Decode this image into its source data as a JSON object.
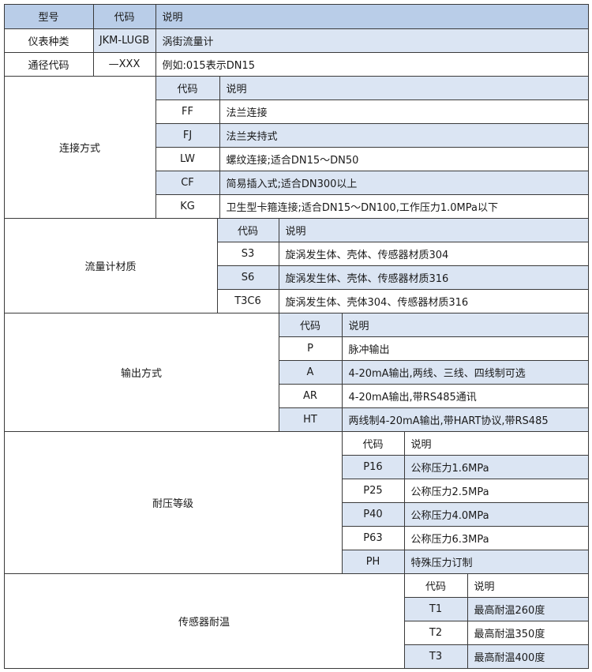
{
  "header": {
    "model": "型号",
    "code": "代码",
    "desc": "说明"
  },
  "top_rows": [
    {
      "label": "仪表种类",
      "code": "JKM-LUGB",
      "desc": "涡街流量计"
    },
    {
      "label": "通径代码",
      "code": "—XXX",
      "desc": "例如:015表示DN15"
    }
  ],
  "sections": [
    {
      "label": "连接方式",
      "code_header": "代码",
      "desc_header": "说明",
      "rows": [
        {
          "code": "FF",
          "desc": "法兰连接"
        },
        {
          "code": "FJ",
          "desc": "法兰夹持式"
        },
        {
          "code": "LW",
          "desc": "螺纹连接;适合DN15～DN50"
        },
        {
          "code": "CF",
          "desc": "简易插入式;适合DN300以上"
        },
        {
          "code": "KG",
          "desc": "卫生型卡箍连接;适合DN15～DN100,工作压力1.0MPa以下"
        }
      ]
    },
    {
      "label": "流量计材质",
      "code_header": "代码",
      "desc_header": "说明",
      "rows": [
        {
          "code": "S3",
          "desc": "旋涡发生体、壳体、传感器材质304"
        },
        {
          "code": "S6",
          "desc": "旋涡发生体、壳体、传感器材质316"
        },
        {
          "code": "T3C6",
          "desc": "旋涡发生体、壳体304、传感器材质316"
        }
      ]
    },
    {
      "label": "输出方式",
      "code_header": "代码",
      "desc_header": "说明",
      "rows": [
        {
          "code": "P",
          "desc": "脉冲输出"
        },
        {
          "code": "A",
          "desc": "4-20mA输出,两线、三线、四线制可选"
        },
        {
          "code": "AR",
          "desc": "4-20mA输出,带RS485通讯"
        },
        {
          "code": "HT",
          "desc": "两线制4-20mA输出,带HART协议,带RS485"
        }
      ]
    },
    {
      "label": "耐压等级",
      "code_header": "代码",
      "desc_header": "说明",
      "rows": [
        {
          "code": "P16",
          "desc": "公称压力1.6MPa"
        },
        {
          "code": "P25",
          "desc": "公称压力2.5MPa"
        },
        {
          "code": "P40",
          "desc": "公称压力4.0MPa"
        },
        {
          "code": "P63",
          "desc": "公称压力6.3MPa"
        },
        {
          "code": "PH",
          "desc": "特殊压力订制"
        }
      ]
    },
    {
      "label": "传感器耐温",
      "code_header": "代码",
      "desc_header": "说明",
      "rows": [
        {
          "code": "T1",
          "desc": "最高耐温260度"
        },
        {
          "code": "T2",
          "desc": "最高耐温350度"
        },
        {
          "code": "T3",
          "desc": "最高耐温400度"
        }
      ]
    }
  ],
  "colors": {
    "header_blue": "#b9cde8",
    "row_blue": "#dbe5f3",
    "border": "#3a3a3a"
  }
}
